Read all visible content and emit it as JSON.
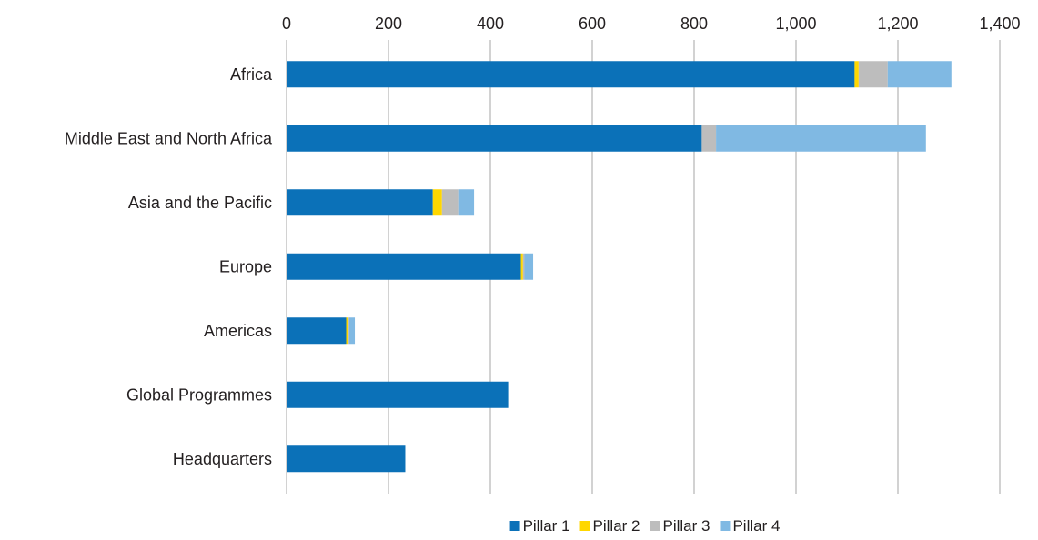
{
  "chart_data": {
    "type": "bar",
    "orientation": "horizontal",
    "stacked": true,
    "title": "",
    "xlabel": "",
    "ylabel": "",
    "xlim": [
      0,
      1400
    ],
    "xticks": [
      "0",
      "200",
      "400",
      "600",
      "800",
      "1,000",
      "1,200",
      "1,400"
    ],
    "xtick_values": [
      0,
      200,
      400,
      600,
      800,
      1000,
      1200,
      1400
    ],
    "x_axis_position": "top",
    "grid": "vertical",
    "legend_position": "bottom",
    "categories": [
      "Africa",
      "Middle East and North Africa",
      "Asia and the Pacific",
      "Europe",
      "Americas",
      "Global Programmes",
      "Headquarters"
    ],
    "series": [
      {
        "name": "Pillar 1",
        "color": "#0b71b8",
        "values": [
          1115,
          815,
          287,
          460,
          117,
          435,
          233
        ]
      },
      {
        "name": "Pillar 2",
        "color": "#ffd700",
        "values": [
          8,
          0,
          18,
          4,
          4,
          0,
          0
        ]
      },
      {
        "name": "Pillar 3",
        "color": "#bdbdbd",
        "values": [
          57,
          28,
          32,
          3,
          2,
          0,
          0
        ]
      },
      {
        "name": "Pillar 4",
        "color": "#80b9e3",
        "values": [
          125,
          412,
          31,
          17,
          11,
          0,
          0
        ]
      }
    ]
  }
}
